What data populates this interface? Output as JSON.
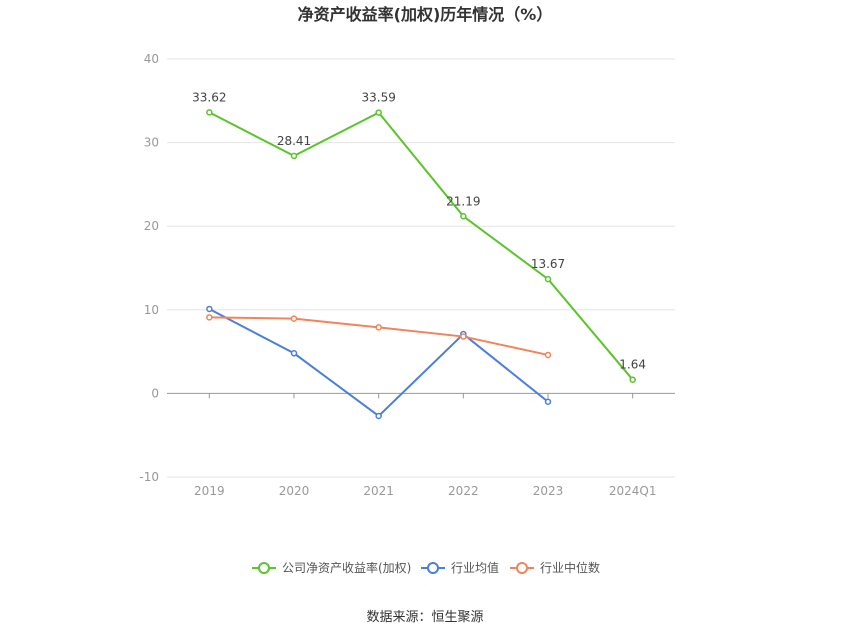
{
  "chart_data": {
    "type": "line",
    "title": "净资产收益率(加权)历年情况（%）",
    "categories": [
      "2019",
      "2020",
      "2021",
      "2022",
      "2023",
      "2024Q1"
    ],
    "ylim": [
      -10,
      40
    ],
    "yticks": [
      "-10",
      "0",
      "10",
      "20",
      "30",
      "40"
    ],
    "grid": true,
    "legend_position": "bottom",
    "series": [
      {
        "name": "公司净资产收益率(加权)",
        "color": "#5ac42a",
        "values": [
          33.62,
          28.41,
          33.59,
          21.19,
          13.67,
          1.64
        ],
        "labels": [
          "33.62",
          "28.41",
          "33.59",
          "21.19",
          "13.67",
          "1.64"
        ]
      },
      {
        "name": "行业均值",
        "color": "#4a7fdc",
        "values": [
          10.1,
          4.8,
          -2.7,
          7.1,
          -1.0,
          null
        ]
      },
      {
        "name": "行业中位数",
        "color": "#f0845a",
        "values": [
          9.1,
          8.95,
          7.9,
          6.8,
          4.6,
          null
        ]
      }
    ],
    "source": "数据来源：恒生聚源"
  }
}
